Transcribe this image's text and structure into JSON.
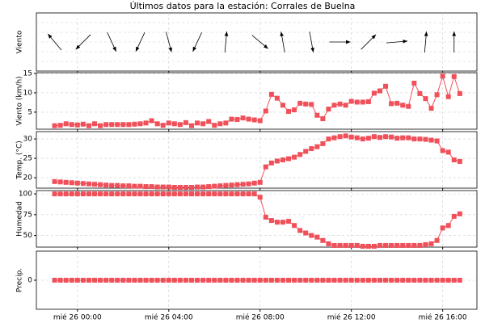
{
  "title": "Últimos datos para la estación: Corrales de Buelna",
  "chart_data": [
    {
      "type": "vector",
      "ylabel": "Viento",
      "color": "#000000",
      "xlim": [
        -1.8,
        17.5
      ],
      "x": [
        -1,
        0.25,
        1.5,
        2.75,
        4,
        5.25,
        6.5,
        8,
        9,
        10.25,
        11.5,
        12.75,
        14,
        15.25,
        16.5
      ],
      "directions": [
        320,
        225,
        155,
        205,
        165,
        205,
        5,
        130,
        350,
        170,
        90,
        45,
        85,
        5,
        0
      ]
    },
    {
      "type": "line",
      "ylabel": "Viento (km/h)",
      "color": "#f0505a",
      "xlim": [
        -1.8,
        17.5
      ],
      "ylim": [
        0.6,
        15.2
      ],
      "yticks": [
        5,
        10,
        15
      ],
      "x": [
        -1,
        -0.75,
        -0.5,
        -0.25,
        0,
        0.25,
        0.5,
        0.75,
        1,
        1.25,
        1.5,
        1.75,
        2,
        2.25,
        2.5,
        2.75,
        3,
        3.25,
        3.5,
        3.75,
        4,
        4.25,
        4.5,
        4.75,
        5,
        5.25,
        5.5,
        5.75,
        6,
        6.25,
        6.5,
        6.75,
        7,
        7.25,
        7.5,
        7.75,
        8,
        8.25,
        8.5,
        8.75,
        9,
        9.25,
        9.5,
        9.75,
        10,
        10.25,
        10.5,
        10.75,
        11,
        11.25,
        11.5,
        11.75,
        12,
        12.25,
        12.5,
        12.75,
        13,
        13.25,
        13.5,
        13.75,
        14,
        14.25,
        14.5,
        14.75,
        15,
        15.25,
        15.5,
        15.75,
        16,
        16.25,
        16.5,
        16.75
      ],
      "values": [
        1.5,
        1.6,
        2.0,
        1.8,
        1.7,
        1.9,
        1.5,
        2.0,
        1.5,
        1.8,
        1.8,
        1.8,
        1.8,
        1.8,
        1.9,
        2.0,
        2.2,
        2.8,
        2.0,
        1.6,
        2.2,
        2.0,
        1.8,
        2.3,
        1.5,
        2.2,
        2.0,
        2.6,
        1.6,
        2.0,
        2.2,
        3.2,
        3.1,
        3.5,
        3.2,
        3.0,
        2.8,
        5.3,
        9.6,
        8.6,
        6.8,
        5.2,
        5.6,
        7.3,
        7.1,
        7.0,
        4.2,
        3.3,
        5.8,
        6.8,
        7.1,
        6.8,
        7.8,
        7.6,
        7.6,
        7.7,
        9.9,
        10.5,
        11.7,
        7.2,
        7.3,
        6.8,
        6.5,
        12.5,
        9.8,
        8.5,
        6.0,
        9.5,
        14.3,
        9.0,
        14.2,
        9.8
      ]
    },
    {
      "type": "line",
      "ylabel": "Temp. (°C)",
      "color": "#f0505a",
      "xlim": [
        -1.8,
        17.5
      ],
      "ylim": [
        17.3,
        31.9
      ],
      "yticks": [
        20,
        25,
        30
      ],
      "x": [
        -1,
        -0.75,
        -0.5,
        -0.25,
        0,
        0.25,
        0.5,
        0.75,
        1,
        1.25,
        1.5,
        1.75,
        2,
        2.25,
        2.5,
        2.75,
        3,
        3.25,
        3.5,
        3.75,
        4,
        4.25,
        4.5,
        4.75,
        5,
        5.25,
        5.5,
        5.75,
        6,
        6.25,
        6.5,
        6.75,
        7,
        7.25,
        7.5,
        7.75,
        8,
        8.25,
        8.5,
        8.75,
        9,
        9.25,
        9.5,
        9.75,
        10,
        10.25,
        10.5,
        10.75,
        11,
        11.25,
        11.5,
        11.75,
        12,
        12.25,
        12.5,
        12.75,
        13,
        13.25,
        13.5,
        13.75,
        14,
        14.25,
        14.5,
        14.75,
        15,
        15.25,
        15.5,
        15.75,
        16,
        16.25,
        16.5,
        16.75
      ],
      "values": [
        19.0,
        18.9,
        18.8,
        18.7,
        18.6,
        18.5,
        18.4,
        18.3,
        18.2,
        18.1,
        18.0,
        18.0,
        17.9,
        17.9,
        17.8,
        17.8,
        17.7,
        17.7,
        17.6,
        17.6,
        17.6,
        17.5,
        17.5,
        17.5,
        17.5,
        17.6,
        17.6,
        17.7,
        17.8,
        17.9,
        18.0,
        18.1,
        18.2,
        18.3,
        18.4,
        18.6,
        18.8,
        22.8,
        23.8,
        24.3,
        24.6,
        24.9,
        25.3,
        26.0,
        26.8,
        27.5,
        28.0,
        28.8,
        30.0,
        30.3,
        30.6,
        30.8,
        30.5,
        30.3,
        30.0,
        30.2,
        30.6,
        30.4,
        30.6,
        30.5,
        30.2,
        30.3,
        30.3,
        30.0,
        30.0,
        29.9,
        29.7,
        29.5,
        27.0,
        26.6,
        24.6,
        24.2
      ]
    },
    {
      "type": "line",
      "ylabel": "Humedad",
      "color": "#f0505a",
      "xlim": [
        -1.8,
        17.5
      ],
      "ylim": [
        36,
        104
      ],
      "yticks": [
        50,
        75,
        100
      ],
      "x": [
        -1,
        -0.75,
        -0.5,
        -0.25,
        0,
        0.25,
        0.5,
        0.75,
        1,
        1.25,
        1.5,
        1.75,
        2,
        2.25,
        2.5,
        2.75,
        3,
        3.25,
        3.5,
        3.75,
        4,
        4.25,
        4.5,
        4.75,
        5,
        5.25,
        5.5,
        5.75,
        6,
        6.25,
        6.5,
        6.75,
        7,
        7.25,
        7.5,
        7.75,
        8,
        8.25,
        8.5,
        8.75,
        9,
        9.25,
        9.5,
        9.75,
        10,
        10.25,
        10.5,
        10.75,
        11,
        11.25,
        11.5,
        11.75,
        12,
        12.25,
        12.5,
        12.75,
        13,
        13.25,
        13.5,
        13.75,
        14,
        14.25,
        14.5,
        14.75,
        15,
        15.25,
        15.5,
        15.75,
        16,
        16.25,
        16.5,
        16.75
      ],
      "values": [
        100,
        100,
        100,
        100,
        100,
        100,
        100,
        100,
        100,
        100,
        100,
        100,
        100,
        100,
        100,
        100,
        100,
        100,
        100,
        100,
        100,
        100,
        100,
        100,
        100,
        100,
        100,
        100,
        100,
        100,
        100,
        100,
        100,
        100,
        100,
        100,
        96,
        72,
        68,
        66,
        66,
        67,
        62,
        56,
        53,
        50,
        48,
        44,
        40,
        38,
        38,
        38,
        38,
        38,
        37,
        37,
        37,
        38,
        38,
        38,
        38,
        38,
        38,
        38,
        38,
        39,
        40,
        44,
        59,
        62,
        73,
        76
      ]
    },
    {
      "type": "line",
      "ylabel": "Precip.",
      "color": "#f0505a",
      "xlim": [
        -1.8,
        17.5
      ],
      "ylim": [
        -1,
        1
      ],
      "yticks": [
        0
      ],
      "x": [
        -1,
        -0.75,
        -0.5,
        -0.25,
        0,
        0.25,
        0.5,
        0.75,
        1,
        1.25,
        1.5,
        1.75,
        2,
        2.25,
        2.5,
        2.75,
        3,
        3.25,
        3.5,
        3.75,
        4,
        4.25,
        4.5,
        4.75,
        5,
        5.25,
        5.5,
        5.75,
        6,
        6.25,
        6.5,
        6.75,
        7,
        7.25,
        7.5,
        7.75,
        8,
        8.25,
        8.5,
        8.75,
        9,
        9.25,
        9.5,
        9.75,
        10,
        10.25,
        10.5,
        10.75,
        11,
        11.25,
        11.5,
        11.75,
        12,
        12.25,
        12.5,
        12.75,
        13,
        13.25,
        13.5,
        13.75,
        14,
        14.25,
        14.5,
        14.75,
        15,
        15.25,
        15.5,
        15.75,
        16,
        16.25,
        16.5,
        16.75
      ],
      "values": [
        0,
        0,
        0,
        0,
        0,
        0,
        0,
        0,
        0,
        0,
        0,
        0,
        0,
        0,
        0,
        0,
        0,
        0,
        0,
        0,
        0,
        0,
        0,
        0,
        0,
        0,
        0,
        0,
        0,
        0,
        0,
        0,
        0,
        0,
        0,
        0,
        0,
        0,
        0,
        0,
        0,
        0,
        0,
        0,
        0,
        0,
        0,
        0,
        0,
        0,
        0,
        0,
        0,
        0,
        0,
        0,
        0,
        0,
        0,
        0,
        0,
        0,
        0,
        0,
        0,
        0,
        0,
        0,
        0,
        0,
        0,
        0
      ],
      "xticks": [
        {
          "value": 0,
          "label": "mié 26 00:00"
        },
        {
          "value": 4,
          "label": "mié 26 04:00"
        },
        {
          "value": 8,
          "label": "mié 26 08:00"
        },
        {
          "value": 12,
          "label": "mié 26 12:00"
        },
        {
          "value": 16,
          "label": "mié 26 16:00"
        }
      ]
    }
  ]
}
